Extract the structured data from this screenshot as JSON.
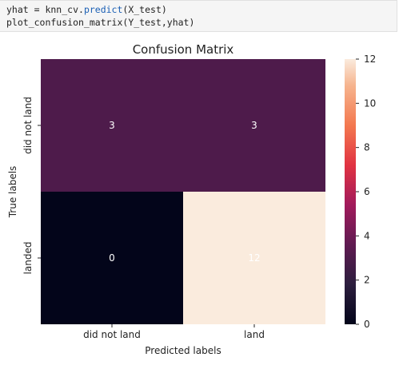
{
  "code_cell": {
    "lines": [
      {
        "pre": "yhat = knn_cv.",
        "call": "predict",
        "post": "(X_test)"
      },
      {
        "pre": "plot_confusion_matrix(Y_test,yhat)",
        "call": "",
        "post": ""
      }
    ]
  },
  "chart_data": {
    "type": "heatmap",
    "title": "Confusion Matrix",
    "xlabel": "Predicted labels",
    "ylabel": "True labels",
    "x_categories": [
      "did not land",
      "land"
    ],
    "y_categories": [
      "did not land",
      "landed"
    ],
    "values": [
      [
        3,
        3
      ],
      [
        0,
        12
      ]
    ],
    "colorbar": {
      "min": 0,
      "max": 12,
      "ticks": [
        "0",
        "2",
        "4",
        "6",
        "8",
        "10",
        "12"
      ]
    },
    "colors": {
      "low": "#03051a",
      "mid": "#5f1a51",
      "high": "#faebdd",
      "annotation": "#ffffff"
    }
  }
}
